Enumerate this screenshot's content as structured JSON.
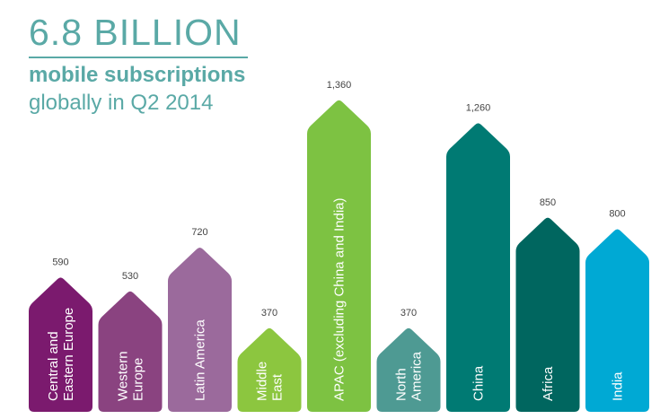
{
  "header": {
    "headline": "6.8 BILLION",
    "subtitle_bold": "mobile subscriptions",
    "subtitle_regular": "globally in Q2 2014"
  },
  "chart_data": {
    "type": "bar",
    "categories": [
      "Central and Eastern Europe",
      "Western Europe",
      "Latin America",
      "Middle East",
      "APAC (excluding China and India)",
      "North America",
      "China",
      "Africa",
      "India"
    ],
    "category_lines": [
      [
        "Central and",
        "Eastern Europe"
      ],
      [
        "Western",
        "Europe"
      ],
      [
        "Latin America"
      ],
      [
        "Middle",
        "East"
      ],
      [
        "APAC (excluding China and India)"
      ],
      [
        "North",
        "America"
      ],
      [
        "China"
      ],
      [
        "Africa"
      ],
      [
        "India"
      ]
    ],
    "values": [
      590,
      530,
      720,
      370,
      1360,
      370,
      1260,
      850,
      800
    ],
    "value_labels": [
      "590",
      "530",
      "720",
      "370",
      "1,360",
      "370",
      "1,260",
      "850",
      "800"
    ],
    "colors": [
      "#7b1a6e",
      "#8a4380",
      "#9b6a9c",
      "#8cc63f",
      "#7dc242",
      "#4e9a93",
      "#007a73",
      "#00665f",
      "#00a9d4"
    ],
    "ylim": [
      0,
      1360
    ],
    "grid": false,
    "legend": "none"
  }
}
